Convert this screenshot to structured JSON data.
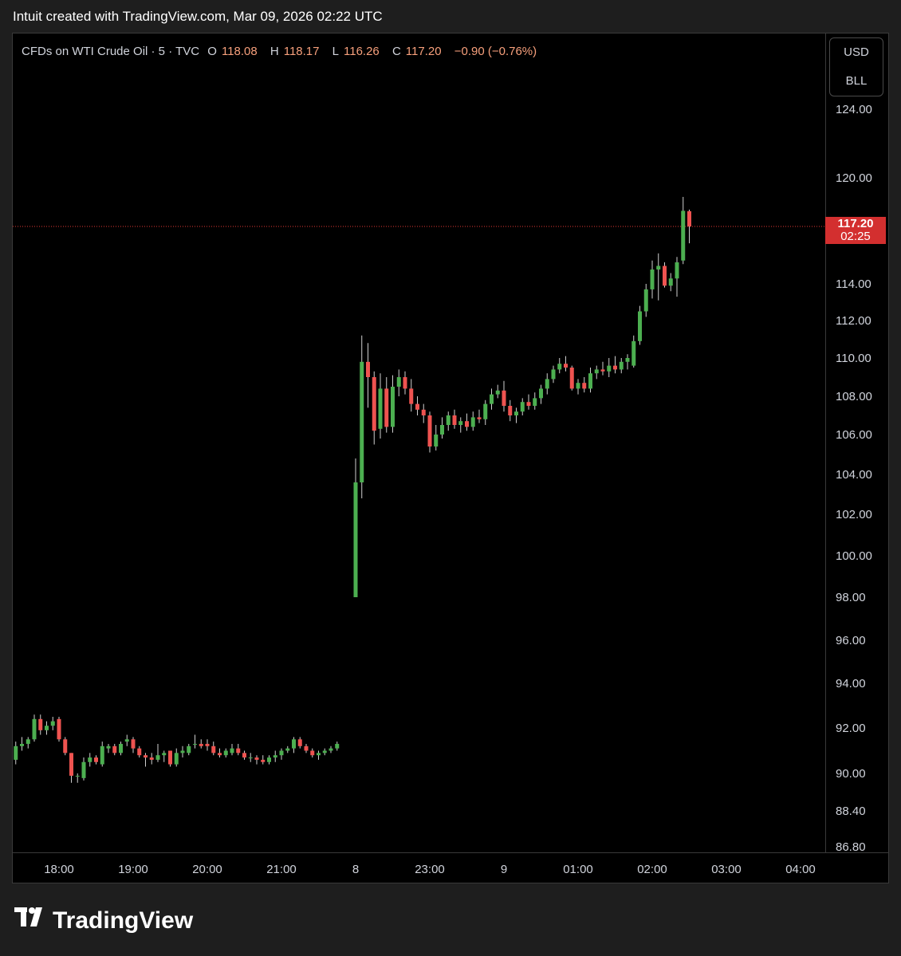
{
  "header": {
    "attribution": "Intuit created with TradingView.com, Mar 09, 2026 02:22 UTC"
  },
  "legend": {
    "symbol": "CFDs on WTI Crude Oil · 5 · TVC",
    "open_label": "O",
    "open": "118.08",
    "high_label": "H",
    "high": "118.17",
    "low_label": "L",
    "low": "116.26",
    "close_label": "C",
    "close": "117.20",
    "change": "−0.90 (−0.76%)"
  },
  "unit_box": {
    "currency": "USD",
    "unit": "BLL"
  },
  "price_tag": {
    "price": "117.20",
    "countdown": "02:25"
  },
  "brand": {
    "name": "TradingView"
  },
  "colors": {
    "up": "#26a69a",
    "up_body": "#4caf50",
    "down": "#ef5350",
    "tag": "#d32f2f",
    "last_line": "#e53935"
  },
  "chart_data": {
    "type": "candlestick",
    "interval_minutes": 5,
    "last_price": 117.2,
    "ylim": [
      86.8,
      125
    ],
    "y_ticks": [
      "124.00",
      "120.00",
      "117.20",
      "114.00",
      "112.00",
      "110.00",
      "108.00",
      "106.00",
      "104.00",
      "102.00",
      "100.00",
      "98.00",
      "96.00",
      "94.00",
      "92.00",
      "90.00",
      "88.40",
      "86.80"
    ],
    "x_ticks": [
      "18:00",
      "19:00",
      "20:00",
      "21:00",
      "8",
      "23:00",
      "9",
      "01:00",
      "02:00",
      "03:00",
      "04:00"
    ],
    "candles": [
      {
        "x": "17:25",
        "o": 90.6,
        "h": 91.4,
        "l": 90.4,
        "c": 91.2
      },
      {
        "x": "17:30",
        "o": 91.2,
        "h": 91.6,
        "l": 91.0,
        "c": 91.3
      },
      {
        "x": "17:35",
        "o": 91.3,
        "h": 91.6,
        "l": 91.1,
        "c": 91.5
      },
      {
        "x": "17:40",
        "o": 91.5,
        "h": 92.6,
        "l": 91.4,
        "c": 92.4
      },
      {
        "x": "17:45",
        "o": 92.4,
        "h": 92.6,
        "l": 91.7,
        "c": 91.9
      },
      {
        "x": "17:50",
        "o": 91.9,
        "h": 92.3,
        "l": 91.7,
        "c": 92.1
      },
      {
        "x": "17:55",
        "o": 92.1,
        "h": 92.5,
        "l": 91.9,
        "c": 92.3
      },
      {
        "x": "18:00",
        "o": 92.4,
        "h": 92.5,
        "l": 91.4,
        "c": 91.5
      },
      {
        "x": "18:05",
        "o": 91.5,
        "h": 91.6,
        "l": 90.8,
        "c": 90.9
      },
      {
        "x": "18:10",
        "o": 90.9,
        "h": 90.9,
        "l": 89.6,
        "c": 89.9
      },
      {
        "x": "18:15",
        "o": 89.9,
        "h": 90.0,
        "l": 89.6,
        "c": 89.9
      },
      {
        "x": "18:20",
        "o": 89.8,
        "h": 90.7,
        "l": 89.7,
        "c": 90.5
      },
      {
        "x": "18:25",
        "o": 90.5,
        "h": 90.9,
        "l": 90.3,
        "c": 90.7
      },
      {
        "x": "18:30",
        "o": 90.7,
        "h": 90.8,
        "l": 90.4,
        "c": 90.5
      },
      {
        "x": "18:35",
        "o": 90.4,
        "h": 91.4,
        "l": 90.3,
        "c": 91.2
      },
      {
        "x": "18:40",
        "o": 91.1,
        "h": 91.3,
        "l": 90.9,
        "c": 91.2
      },
      {
        "x": "18:45",
        "o": 91.2,
        "h": 91.3,
        "l": 90.8,
        "c": 90.9
      },
      {
        "x": "18:50",
        "o": 90.9,
        "h": 91.4,
        "l": 90.8,
        "c": 91.3
      },
      {
        "x": "18:55",
        "o": 91.4,
        "h": 91.7,
        "l": 91.2,
        "c": 91.5
      },
      {
        "x": "19:00",
        "o": 91.5,
        "h": 91.6,
        "l": 90.9,
        "c": 91.1
      },
      {
        "x": "19:05",
        "o": 91.1,
        "h": 91.2,
        "l": 90.7,
        "c": 90.8
      },
      {
        "x": "19:10",
        "o": 90.8,
        "h": 90.9,
        "l": 90.3,
        "c": 90.7
      },
      {
        "x": "19:15",
        "o": 90.7,
        "h": 90.9,
        "l": 90.4,
        "c": 90.6
      },
      {
        "x": "19:20",
        "o": 90.6,
        "h": 91.3,
        "l": 90.5,
        "c": 90.8
      },
      {
        "x": "19:25",
        "o": 90.8,
        "h": 91.0,
        "l": 90.5,
        "c": 90.9
      },
      {
        "x": "19:30",
        "o": 91.0,
        "h": 91.0,
        "l": 90.3,
        "c": 90.4
      },
      {
        "x": "19:35",
        "o": 90.4,
        "h": 91.1,
        "l": 90.3,
        "c": 90.9
      },
      {
        "x": "19:40",
        "o": 90.9,
        "h": 91.2,
        "l": 90.7,
        "c": 91.0
      },
      {
        "x": "19:45",
        "o": 90.9,
        "h": 91.3,
        "l": 90.8,
        "c": 91.2
      },
      {
        "x": "19:50",
        "o": 91.3,
        "h": 91.7,
        "l": 91.1,
        "c": 91.3
      },
      {
        "x": "19:55",
        "o": 91.3,
        "h": 91.5,
        "l": 91.1,
        "c": 91.2
      },
      {
        "x": "20:00",
        "o": 91.3,
        "h": 91.5,
        "l": 91.0,
        "c": 91.2
      },
      {
        "x": "20:05",
        "o": 91.2,
        "h": 91.4,
        "l": 90.8,
        "c": 90.9
      },
      {
        "x": "20:10",
        "o": 90.9,
        "h": 91.1,
        "l": 90.7,
        "c": 90.8
      },
      {
        "x": "20:15",
        "o": 90.8,
        "h": 91.1,
        "l": 90.7,
        "c": 91.0
      },
      {
        "x": "20:20",
        "o": 90.9,
        "h": 91.3,
        "l": 90.8,
        "c": 91.1
      },
      {
        "x": "20:25",
        "o": 91.1,
        "h": 91.3,
        "l": 90.8,
        "c": 90.9
      },
      {
        "x": "20:30",
        "o": 90.9,
        "h": 91.0,
        "l": 90.6,
        "c": 90.7
      },
      {
        "x": "20:35",
        "o": 90.7,
        "h": 90.9,
        "l": 90.5,
        "c": 90.7
      },
      {
        "x": "20:40",
        "o": 90.7,
        "h": 90.8,
        "l": 90.4,
        "c": 90.6
      },
      {
        "x": "20:45",
        "o": 90.6,
        "h": 90.8,
        "l": 90.4,
        "c": 90.5
      },
      {
        "x": "20:50",
        "o": 90.5,
        "h": 90.8,
        "l": 90.4,
        "c": 90.7
      },
      {
        "x": "20:55",
        "o": 90.7,
        "h": 91.0,
        "l": 90.5,
        "c": 90.8
      },
      {
        "x": "21:00",
        "o": 90.8,
        "h": 91.1,
        "l": 90.6,
        "c": 91.0
      },
      {
        "x": "21:05",
        "o": 91.0,
        "h": 91.2,
        "l": 90.9,
        "c": 91.1
      },
      {
        "x": "21:10",
        "o": 91.1,
        "h": 91.6,
        "l": 90.9,
        "c": 91.5
      },
      {
        "x": "21:15",
        "o": 91.5,
        "h": 91.6,
        "l": 91.1,
        "c": 91.2
      },
      {
        "x": "21:20",
        "o": 91.2,
        "h": 91.3,
        "l": 90.9,
        "c": 91.0
      },
      {
        "x": "21:25",
        "o": 91.0,
        "h": 91.1,
        "l": 90.7,
        "c": 90.8
      },
      {
        "x": "21:30",
        "o": 90.8,
        "h": 91.0,
        "l": 90.6,
        "c": 90.9
      },
      {
        "x": "21:35",
        "o": 90.9,
        "h": 91.1,
        "l": 90.8,
        "c": 91.0
      },
      {
        "x": "21:40",
        "o": 91.0,
        "h": 91.2,
        "l": 90.9,
        "c": 91.1
      },
      {
        "x": "21:45",
        "o": 91.1,
        "h": 91.4,
        "l": 91.0,
        "c": 91.3
      },
      {
        "x": "22:00",
        "o": 98.0,
        "h": 104.8,
        "l": 98.0,
        "c": 103.6
      },
      {
        "x": "22:05",
        "o": 103.6,
        "h": 111.2,
        "l": 102.8,
        "c": 109.8
      },
      {
        "x": "22:10",
        "o": 109.8,
        "h": 110.8,
        "l": 107.4,
        "c": 109.0
      },
      {
        "x": "22:15",
        "o": 109.0,
        "h": 109.3,
        "l": 105.5,
        "c": 106.2
      },
      {
        "x": "22:20",
        "o": 106.3,
        "h": 109.2,
        "l": 105.8,
        "c": 108.4
      },
      {
        "x": "22:25",
        "o": 108.4,
        "h": 109.0,
        "l": 106.1,
        "c": 106.4
      },
      {
        "x": "22:30",
        "o": 106.4,
        "h": 109.1,
        "l": 106.1,
        "c": 108.5
      },
      {
        "x": "22:35",
        "o": 108.5,
        "h": 109.4,
        "l": 108.0,
        "c": 109.0
      },
      {
        "x": "22:40",
        "o": 109.0,
        "h": 109.3,
        "l": 108.1,
        "c": 108.4
      },
      {
        "x": "22:45",
        "o": 108.4,
        "h": 108.9,
        "l": 107.2,
        "c": 107.6
      },
      {
        "x": "22:50",
        "o": 107.6,
        "h": 108.0,
        "l": 107.0,
        "c": 107.3
      },
      {
        "x": "22:55",
        "o": 107.3,
        "h": 107.6,
        "l": 106.6,
        "c": 107.0
      },
      {
        "x": "23:00",
        "o": 107.0,
        "h": 107.2,
        "l": 105.1,
        "c": 105.4
      },
      {
        "x": "23:05",
        "o": 105.4,
        "h": 106.5,
        "l": 105.2,
        "c": 106.0
      },
      {
        "x": "23:10",
        "o": 106.0,
        "h": 106.9,
        "l": 105.8,
        "c": 106.5
      },
      {
        "x": "23:15",
        "o": 106.5,
        "h": 107.2,
        "l": 106.2,
        "c": 107.0
      },
      {
        "x": "23:20",
        "o": 107.0,
        "h": 107.3,
        "l": 106.3,
        "c": 106.5
      },
      {
        "x": "23:25",
        "o": 106.5,
        "h": 106.9,
        "l": 106.1,
        "c": 106.7
      },
      {
        "x": "23:30",
        "o": 106.7,
        "h": 107.1,
        "l": 106.2,
        "c": 106.4
      },
      {
        "x": "23:35",
        "o": 106.4,
        "h": 107.2,
        "l": 106.2,
        "c": 106.9
      },
      {
        "x": "23:40",
        "o": 106.9,
        "h": 107.3,
        "l": 106.6,
        "c": 106.8
      },
      {
        "x": "23:45",
        "o": 106.8,
        "h": 107.8,
        "l": 106.5,
        "c": 107.6
      },
      {
        "x": "23:50",
        "o": 107.6,
        "h": 108.4,
        "l": 107.3,
        "c": 108.1
      },
      {
        "x": "23:55",
        "o": 108.1,
        "h": 108.6,
        "l": 107.9,
        "c": 108.3
      },
      {
        "x": "00:00",
        "o": 108.3,
        "h": 108.8,
        "l": 107.2,
        "c": 107.5
      },
      {
        "x": "00:05",
        "o": 107.5,
        "h": 107.8,
        "l": 106.7,
        "c": 107.0
      },
      {
        "x": "00:10",
        "o": 107.0,
        "h": 107.4,
        "l": 106.6,
        "c": 107.2
      },
      {
        "x": "00:15",
        "o": 107.2,
        "h": 107.9,
        "l": 107.0,
        "c": 107.7
      },
      {
        "x": "00:20",
        "o": 107.7,
        "h": 108.1,
        "l": 107.3,
        "c": 107.5
      },
      {
        "x": "00:25",
        "o": 107.5,
        "h": 108.2,
        "l": 107.3,
        "c": 107.9
      },
      {
        "x": "00:30",
        "o": 107.9,
        "h": 108.6,
        "l": 107.6,
        "c": 108.4
      },
      {
        "x": "00:35",
        "o": 108.4,
        "h": 109.2,
        "l": 108.1,
        "c": 108.9
      },
      {
        "x": "00:40",
        "o": 108.9,
        "h": 109.6,
        "l": 108.7,
        "c": 109.4
      },
      {
        "x": "00:45",
        "o": 109.4,
        "h": 110.0,
        "l": 109.2,
        "c": 109.7
      },
      {
        "x": "00:50",
        "o": 109.7,
        "h": 110.1,
        "l": 109.3,
        "c": 109.5
      },
      {
        "x": "00:55",
        "o": 109.5,
        "h": 109.6,
        "l": 108.3,
        "c": 108.4
      },
      {
        "x": "01:00",
        "o": 108.4,
        "h": 108.9,
        "l": 108.1,
        "c": 108.7
      },
      {
        "x": "01:05",
        "o": 108.7,
        "h": 109.0,
        "l": 108.2,
        "c": 108.4
      },
      {
        "x": "01:10",
        "o": 108.4,
        "h": 109.5,
        "l": 108.2,
        "c": 109.2
      },
      {
        "x": "01:15",
        "o": 109.2,
        "h": 109.6,
        "l": 108.9,
        "c": 109.4
      },
      {
        "x": "01:20",
        "o": 109.4,
        "h": 109.8,
        "l": 109.1,
        "c": 109.3
      },
      {
        "x": "01:25",
        "o": 109.3,
        "h": 110.0,
        "l": 109.0,
        "c": 109.6
      },
      {
        "x": "01:30",
        "o": 109.6,
        "h": 110.1,
        "l": 109.2,
        "c": 109.4
      },
      {
        "x": "01:35",
        "o": 109.4,
        "h": 110.0,
        "l": 109.2,
        "c": 109.8
      },
      {
        "x": "01:40",
        "o": 109.8,
        "h": 110.2,
        "l": 109.4,
        "c": 110.0
      },
      {
        "x": "01:45",
        "o": 109.6,
        "h": 111.2,
        "l": 109.5,
        "c": 110.9
      },
      {
        "x": "01:50",
        "o": 110.9,
        "h": 112.8,
        "l": 110.7,
        "c": 112.5
      },
      {
        "x": "01:55",
        "o": 112.5,
        "h": 114.0,
        "l": 112.2,
        "c": 113.7
      },
      {
        "x": "02:00",
        "o": 113.7,
        "h": 115.3,
        "l": 113.2,
        "c": 114.8
      },
      {
        "x": "02:05",
        "o": 114.8,
        "h": 115.7,
        "l": 113.1,
        "c": 115.0
      },
      {
        "x": "02:10",
        "o": 115.0,
        "h": 115.2,
        "l": 113.8,
        "c": 113.9
      },
      {
        "x": "02:15",
        "o": 113.9,
        "h": 114.6,
        "l": 113.6,
        "c": 114.3
      },
      {
        "x": "02:20",
        "o": 114.3,
        "h": 115.5,
        "l": 113.3,
        "c": 115.2
      },
      {
        "x": "02:25",
        "o": 115.3,
        "h": 118.9,
        "l": 115.1,
        "c": 118.1
      },
      {
        "x": "02:30",
        "o": 118.08,
        "h": 118.17,
        "l": 116.26,
        "c": 117.2
      }
    ]
  }
}
